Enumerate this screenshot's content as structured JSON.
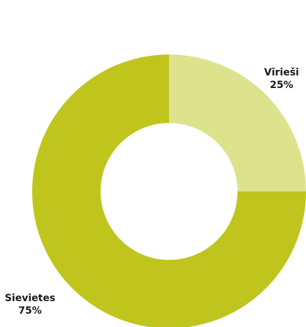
{
  "chart_data": {
    "type": "pie",
    "title": "",
    "donut": true,
    "categories": [
      "Vīrieši",
      "Sievietes"
    ],
    "values": [
      25,
      75
    ],
    "value_labels": [
      "25%",
      "75%"
    ],
    "colors": [
      "#dde38c",
      "#c0c51e"
    ],
    "legend": "none"
  }
}
